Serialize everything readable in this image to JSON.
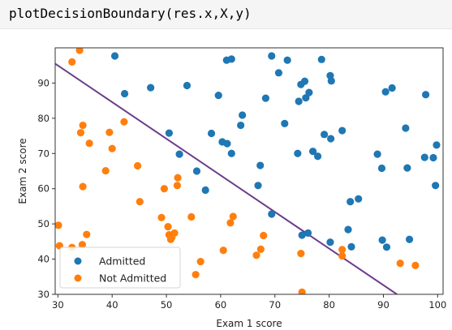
{
  "code_cell": {
    "code": "plotDecisionBoundary(res.x,X,y)"
  },
  "colors": {
    "admitted": "#1f77b4",
    "not_admitted": "#ff7f0e",
    "boundary": "#6a3d8a",
    "axes": "#333333"
  },
  "chart_data": {
    "type": "scatter",
    "title": "",
    "xlabel": "Exam 1 score",
    "ylabel": "Exam 2 score",
    "xlim": [
      29.5,
      101
    ],
    "ylim": [
      30,
      100
    ],
    "xticks": [
      30,
      40,
      50,
      60,
      70,
      80,
      90,
      100
    ],
    "yticks": [
      30,
      40,
      50,
      60,
      70,
      80,
      90
    ],
    "grid": false,
    "legend_position": "lower-left",
    "series": [
      {
        "name": "Admitted",
        "color": "#1f77b4",
        "points": [
          [
            40.5,
            97.7
          ],
          [
            42.3,
            87.0
          ],
          [
            47.1,
            88.7
          ],
          [
            53.8,
            89.3
          ],
          [
            59.6,
            86.5
          ],
          [
            61.1,
            96.5
          ],
          [
            62.0,
            96.8
          ],
          [
            63.7,
            78.0
          ],
          [
            64.0,
            80.9
          ],
          [
            68.3,
            85.7
          ],
          [
            69.4,
            97.7
          ],
          [
            70.7,
            92.9
          ],
          [
            72.3,
            96.5
          ],
          [
            74.4,
            84.8
          ],
          [
            74.8,
            89.6
          ],
          [
            75.5,
            90.5
          ],
          [
            75.7,
            85.8
          ],
          [
            76.3,
            87.3
          ],
          [
            78.6,
            96.7
          ],
          [
            80.2,
            92.1
          ],
          [
            80.4,
            90.6
          ],
          [
            50.5,
            75.8
          ],
          [
            52.4,
            69.8
          ],
          [
            55.6,
            65.0
          ],
          [
            57.2,
            59.6
          ],
          [
            58.3,
            75.7
          ],
          [
            60.3,
            73.3
          ],
          [
            61.2,
            72.8
          ],
          [
            62.0,
            70.0
          ],
          [
            66.9,
            60.9
          ],
          [
            67.3,
            66.6
          ],
          [
            69.4,
            52.8
          ],
          [
            71.8,
            78.5
          ],
          [
            74.2,
            70.0
          ],
          [
            77.0,
            70.6
          ],
          [
            77.9,
            69.2
          ],
          [
            79.1,
            75.4
          ],
          [
            80.3,
            74.2
          ],
          [
            82.4,
            76.5
          ],
          [
            75.0,
            46.8
          ],
          [
            76.1,
            47.4
          ],
          [
            80.2,
            44.8
          ],
          [
            83.5,
            48.4
          ],
          [
            84.1,
            43.5
          ],
          [
            83.9,
            56.3
          ],
          [
            85.4,
            57.1
          ],
          [
            88.9,
            69.8
          ],
          [
            89.7,
            65.8
          ],
          [
            90.4,
            87.5
          ],
          [
            91.6,
            88.6
          ],
          [
            94.1,
            77.2
          ],
          [
            94.4,
            65.9
          ],
          [
            97.6,
            68.9
          ],
          [
            97.8,
            86.7
          ],
          [
            99.2,
            68.8
          ],
          [
            99.6,
            60.9
          ],
          [
            99.8,
            72.4
          ],
          [
            89.8,
            45.4
          ],
          [
            90.6,
            43.4
          ],
          [
            94.8,
            45.6
          ]
        ]
      },
      {
        "name": "Not Admitted",
        "color": "#ff7f0e",
        "points": [
          [
            30.3,
            43.8
          ],
          [
            30.1,
            49.6
          ],
          [
            32.6,
            43.3
          ],
          [
            32.6,
            96.0
          ],
          [
            34.0,
            99.3
          ],
          [
            34.5,
            44.1
          ],
          [
            34.6,
            60.6
          ],
          [
            34.2,
            75.9
          ],
          [
            34.6,
            78.0
          ],
          [
            35.3,
            47.0
          ],
          [
            35.8,
            72.9
          ],
          [
            38.8,
            65.1
          ],
          [
            39.5,
            76.0
          ],
          [
            40.0,
            71.4
          ],
          [
            42.2,
            79.0
          ],
          [
            45.1,
            56.3
          ],
          [
            44.7,
            66.5
          ],
          [
            49.1,
            51.8
          ],
          [
            49.6,
            60.0
          ],
          [
            50.3,
            49.2
          ],
          [
            50.5,
            46.9
          ],
          [
            50.8,
            45.6
          ],
          [
            51.0,
            46.2
          ],
          [
            51.5,
            47.4
          ],
          [
            52.0,
            60.9
          ],
          [
            52.1,
            63.1
          ],
          [
            54.6,
            52.0
          ],
          [
            55.4,
            35.6
          ],
          [
            56.3,
            39.3
          ],
          [
            60.5,
            42.5
          ],
          [
            61.8,
            50.3
          ],
          [
            62.3,
            52.1
          ],
          [
            66.6,
            41.1
          ],
          [
            67.4,
            42.8
          ],
          [
            67.9,
            46.7
          ],
          [
            74.8,
            41.6
          ],
          [
            75.0,
            30.6
          ],
          [
            82.4,
            42.7
          ],
          [
            82.4,
            40.9
          ],
          [
            93.1,
            38.8
          ],
          [
            95.9,
            38.2
          ]
        ]
      }
    ],
    "decision_boundary": {
      "name": "",
      "color": "#6a3d8a",
      "x": [
        29.5,
        92.5
      ],
      "y": [
        95.5,
        30
      ]
    }
  }
}
